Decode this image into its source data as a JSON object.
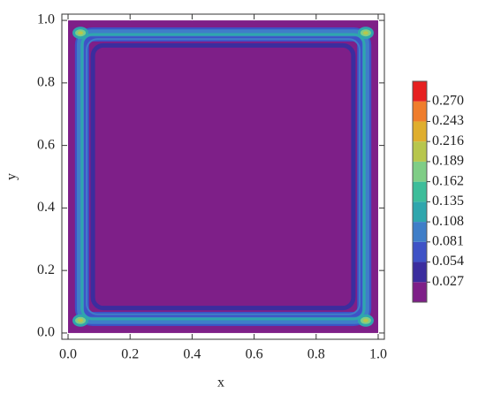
{
  "chart_data": {
    "type": "contour",
    "xlabel": "x",
    "ylabel": "y",
    "xlim": [
      -0.02,
      1.02
    ],
    "ylim": [
      -0.02,
      1.02
    ],
    "xticks": [
      {
        "value": 0,
        "label": "0.0"
      },
      0.2,
      0.4,
      0.6,
      0.8,
      {
        "value": 1,
        "label": "1.0"
      }
    ],
    "yticks": [
      {
        "value": 0,
        "label": "0.0"
      },
      0.2,
      0.4,
      0.6,
      0.8,
      {
        "value": 1,
        "label": "1.0"
      }
    ],
    "levels": [
      0.027,
      0.054,
      0.081,
      0.108,
      0.135,
      0.162,
      0.189,
      0.216,
      0.243,
      {
        "value": 0.27,
        "label": "0.270"
      }
    ],
    "colors": [
      "#7e1f88",
      "#3b2d9e",
      "#3e52c6",
      "#3f7ec8",
      "#2fa6ad",
      "#3dbd9a",
      "#7fcd86",
      "#b7c64d",
      "#dfae2e",
      "#ef7d2c",
      "#e62020"
    ]
  }
}
